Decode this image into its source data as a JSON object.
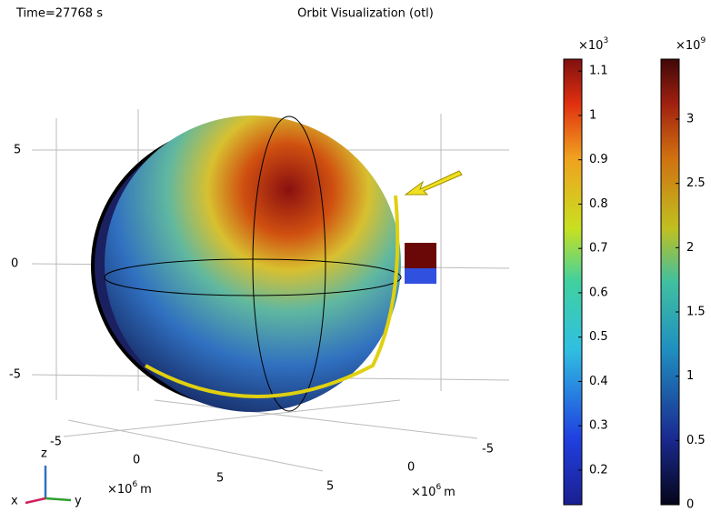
{
  "header": {
    "time": "Time=27768 s",
    "title": "Orbit Visualization (otl)"
  },
  "axes": {
    "vertical_ticks": [
      "5",
      "0",
      "-5"
    ],
    "left_ticks": [
      "-5",
      "0",
      "5"
    ],
    "left_unit": {
      "base": "×10",
      "exp": "6",
      "unit": "m"
    },
    "right_ticks": [
      "-5",
      "0",
      "5"
    ],
    "right_unit": {
      "base": "×10",
      "exp": "6",
      "unit": "m"
    },
    "triad": [
      "z",
      "x",
      "y"
    ]
  },
  "colorbars": [
    {
      "multiplier": {
        "base": "×10",
        "exp": "3"
      },
      "range": [
        0.122,
        1.127
      ],
      "ticks": [
        0.2,
        0.3,
        0.4,
        0.5,
        0.6,
        0.7,
        0.8,
        0.9,
        1,
        1.1
      ]
    },
    {
      "multiplier": {
        "base": "×10",
        "exp": "9"
      },
      "range": [
        0,
        3.467
      ],
      "ticks": [
        0,
        0.5,
        1,
        1.5,
        2,
        2.5,
        3
      ]
    }
  ]
}
